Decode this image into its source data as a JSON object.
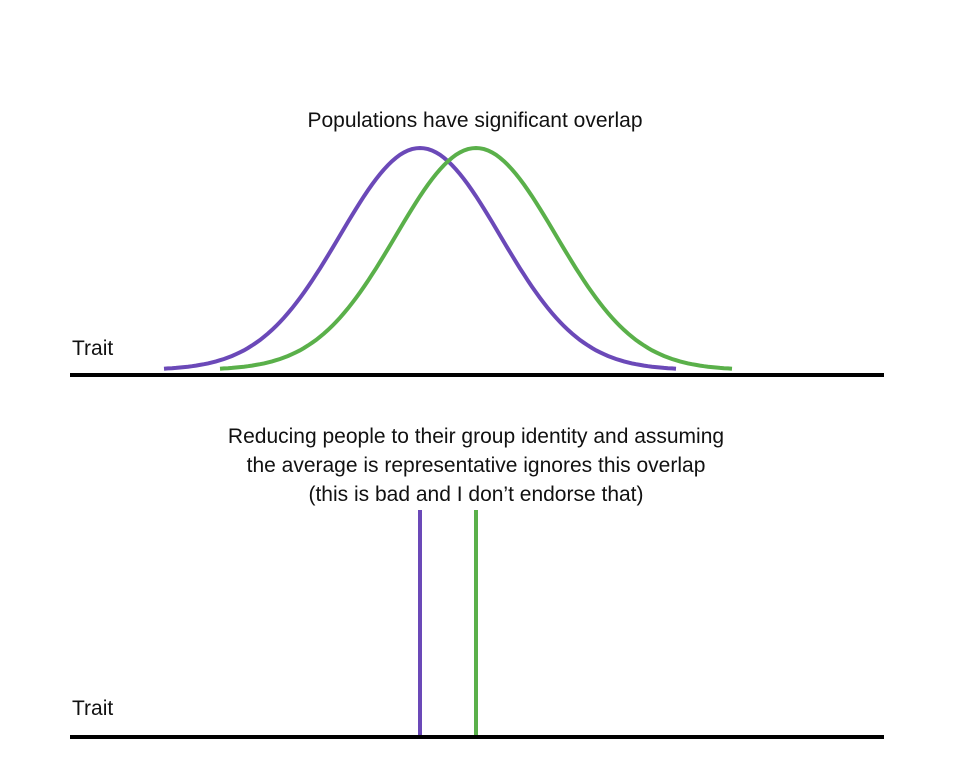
{
  "top_panel": {
    "title": "Populations have significant overlap",
    "axis_label": "Trait"
  },
  "bottom_panel": {
    "caption_lines": [
      "Reducing people to their group identity and assuming",
      "the average is representative ignores this overlap",
      "(this is bad and I don’t endorse that)"
    ],
    "axis_label": "Trait"
  },
  "chart_data": {
    "type": "line",
    "series": [
      {
        "name": "group-purple",
        "mean": 0,
        "sd": 1,
        "color": "#6b49b8"
      },
      {
        "name": "group-green",
        "mean": 0.7,
        "sd": 1,
        "color": "#5ab04a"
      }
    ],
    "xlabel": "Trait",
    "grid": false
  }
}
